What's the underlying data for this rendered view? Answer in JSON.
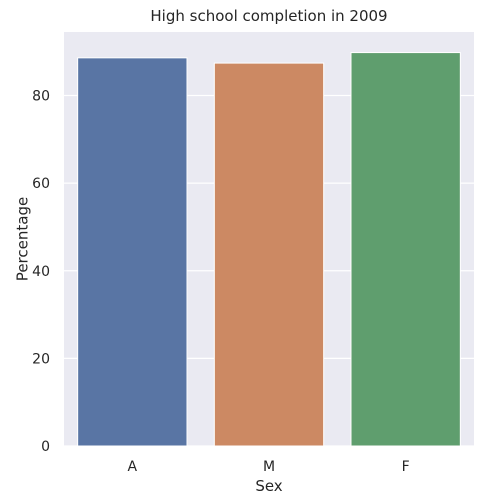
{
  "chart_data": {
    "type": "bar",
    "title": "High school completion in 2009",
    "xlabel": "Sex",
    "ylabel": "Percentage",
    "categories": [
      "A",
      "M",
      "F"
    ],
    "values": [
      88.6,
      87.4,
      89.8
    ],
    "ylim": [
      0,
      94.5
    ],
    "yticks": [
      0,
      20,
      40,
      60,
      80
    ],
    "grid": true,
    "colors": {
      "background": "#eaeaf2",
      "grid": "#ffffff",
      "bars": [
        "#5975a4",
        "#cc8963",
        "#5f9e6e"
      ]
    }
  }
}
